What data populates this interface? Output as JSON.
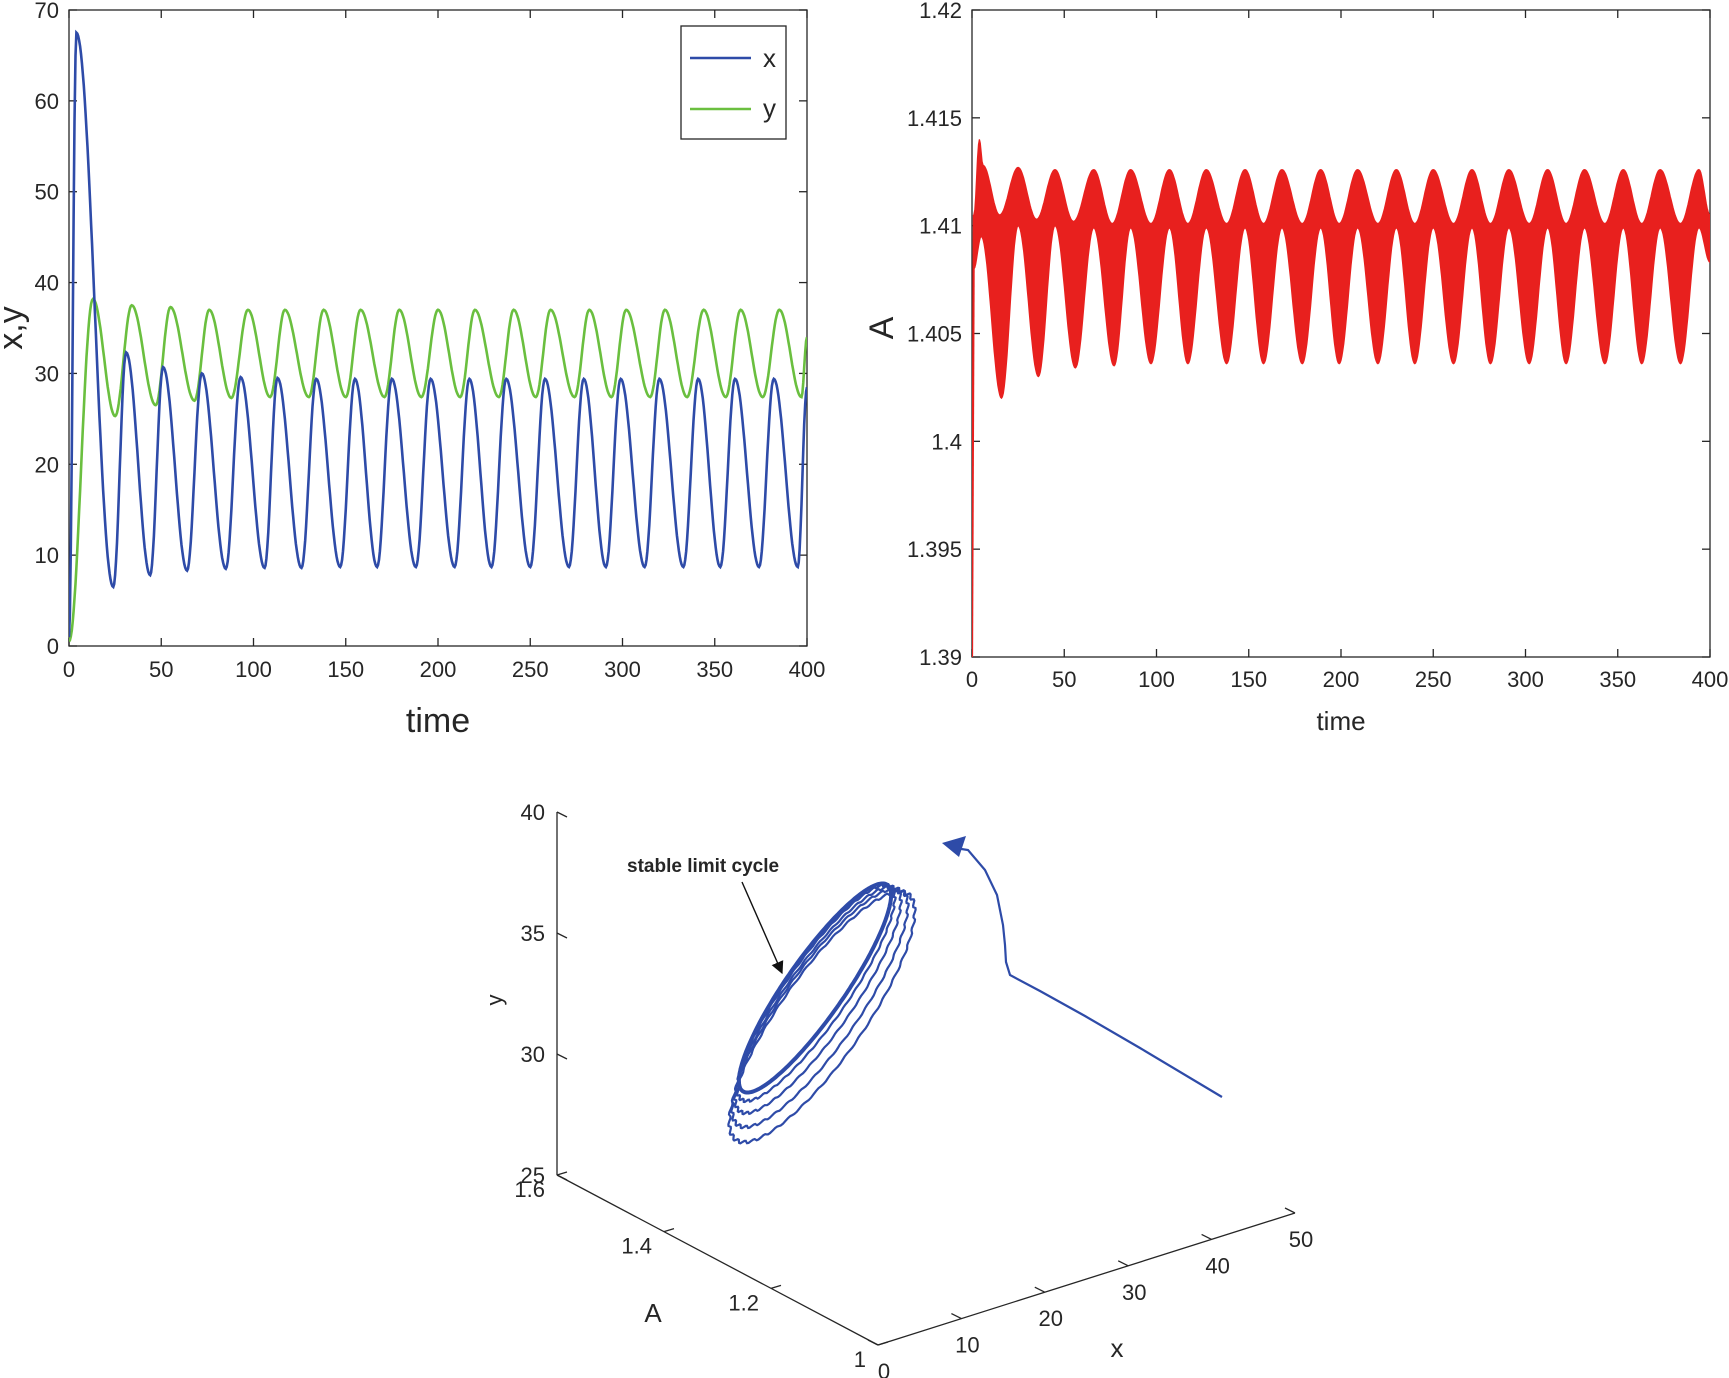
{
  "colors": {
    "x": "#2E4BA8",
    "y": "#6ABF3F",
    "A": "#E8201E",
    "axis": "#262626",
    "trajectory": "#2E4BA8"
  },
  "chart_data": [
    {
      "type": "line",
      "xlabel": "time",
      "ylabel": "x,y",
      "xlim": [
        0,
        400
      ],
      "ylim": [
        0,
        70
      ],
      "xticks": [
        "0",
        "50",
        "100",
        "150",
        "200",
        "250",
        "300",
        "350",
        "400"
      ],
      "yticks": [
        "0",
        "10",
        "20",
        "30",
        "40",
        "50",
        "60",
        "70"
      ],
      "legend_position": "top-right",
      "series": [
        {
          "name": "x",
          "color": "#2E4BA8",
          "extrema": [
            [
              0,
              1
            ],
            [
              4,
              67.5
            ],
            [
              24,
              6.5
            ],
            [
              31,
              32.3
            ],
            [
              44,
              7.8
            ],
            [
              51,
              30.7
            ],
            [
              64,
              8.3
            ],
            [
              72,
              30.0
            ],
            [
              85,
              8.5
            ],
            [
              93,
              29.6
            ],
            [
              106,
              8.6
            ],
            [
              113,
              29.5
            ],
            [
              126,
              8.6
            ],
            [
              134,
              29.4
            ],
            [
              147,
              8.7
            ],
            [
              155,
              29.4
            ],
            [
              167,
              8.7
            ],
            [
              175,
              29.4
            ],
            [
              188,
              8.7
            ],
            [
              196,
              29.4
            ],
            [
              209,
              8.7
            ],
            [
              217,
              29.4
            ],
            [
              229,
              8.7
            ],
            [
              237,
              29.4
            ],
            [
              250,
              8.7
            ],
            [
              258,
              29.4
            ],
            [
              271,
              8.7
            ],
            [
              279,
              29.4
            ],
            [
              291,
              8.7
            ],
            [
              299,
              29.4
            ],
            [
              312,
              8.7
            ],
            [
              320,
              29.4
            ],
            [
              333,
              8.7
            ],
            [
              341,
              29.4
            ],
            [
              353,
              8.7
            ],
            [
              361,
              29.4
            ],
            [
              374,
              8.7
            ],
            [
              382,
              29.4
            ],
            [
              395,
              8.7
            ],
            [
              400,
              28.5
            ]
          ]
        },
        {
          "name": "y",
          "color": "#6ABF3F",
          "extrema": [
            [
              0,
              0.5
            ],
            [
              13,
              38.2
            ],
            [
              25,
              25.3
            ],
            [
              34,
              37.5
            ],
            [
              47,
              26.5
            ],
            [
              55,
              37.3
            ],
            [
              68,
              27.0
            ],
            [
              76,
              37.0
            ],
            [
              88,
              27.3
            ],
            [
              97,
              37.0
            ],
            [
              109,
              27.4
            ],
            [
              117,
              37.0
            ],
            [
              130,
              27.4
            ],
            [
              138,
              37.0
            ],
            [
              150,
              27.4
            ],
            [
              158,
              37.0
            ],
            [
              171,
              27.4
            ],
            [
              179,
              37.0
            ],
            [
              191,
              27.4
            ],
            [
              200,
              37.0
            ],
            [
              212,
              27.4
            ],
            [
              220,
              37.0
            ],
            [
              233,
              27.4
            ],
            [
              241,
              37.0
            ],
            [
              253,
              27.4
            ],
            [
              261,
              37.0
            ],
            [
              274,
              27.4
            ],
            [
              282,
              37.0
            ],
            [
              294,
              27.4
            ],
            [
              302,
              37.0
            ],
            [
              315,
              27.4
            ],
            [
              323,
              37.0
            ],
            [
              335,
              27.4
            ],
            [
              344,
              37.0
            ],
            [
              356,
              27.4
            ],
            [
              364,
              37.0
            ],
            [
              376,
              27.4
            ],
            [
              385,
              37.0
            ],
            [
              397,
              27.4
            ],
            [
              400,
              34.0
            ]
          ]
        }
      ]
    },
    {
      "type": "line",
      "xlabel": "time",
      "ylabel": "A",
      "xlim": [
        0,
        400
      ],
      "ylim": [
        1.39,
        1.42
      ],
      "xticks": [
        "0",
        "50",
        "100",
        "150",
        "200",
        "250",
        "300",
        "350",
        "400"
      ],
      "yticks": [
        "1.39",
        "1.395",
        "1.4",
        "1.405",
        "1.41",
        "1.415",
        "1.42"
      ],
      "series": [
        {
          "name": "A",
          "color": "#E8201E",
          "envelope_upper": [
            [
              0,
              1.39
            ],
            [
              1,
              1.4105
            ],
            [
              4,
              1.414
            ],
            [
              6,
              1.4128
            ],
            [
              15,
              1.4105
            ],
            [
              25,
              1.4127
            ],
            [
              35,
              1.4103
            ],
            [
              45,
              1.4126
            ],
            [
              55,
              1.4102
            ],
            [
              66,
              1.4126
            ],
            [
              76,
              1.4101
            ],
            [
              86,
              1.4126
            ],
            [
              97,
              1.4101
            ],
            [
              107,
              1.4126
            ],
            [
              117,
              1.4101
            ],
            [
              127,
              1.4126
            ],
            [
              138,
              1.4101
            ],
            [
              148,
              1.4126
            ],
            [
              158,
              1.4101
            ],
            [
              168,
              1.4126
            ],
            [
              179,
              1.4101
            ],
            [
              189,
              1.4126
            ],
            [
              199,
              1.4101
            ],
            [
              209,
              1.4126
            ],
            [
              220,
              1.4101
            ],
            [
              230,
              1.4126
            ],
            [
              240,
              1.4101
            ],
            [
              250,
              1.4126
            ],
            [
              261,
              1.4101
            ],
            [
              271,
              1.4126
            ],
            [
              281,
              1.4101
            ],
            [
              291,
              1.4126
            ],
            [
              302,
              1.4101
            ],
            [
              312,
              1.4126
            ],
            [
              322,
              1.4101
            ],
            [
              332,
              1.4126
            ],
            [
              343,
              1.4101
            ],
            [
              353,
              1.4126
            ],
            [
              363,
              1.4101
            ],
            [
              373,
              1.4126
            ],
            [
              384,
              1.4101
            ],
            [
              394,
              1.4126
            ],
            [
              400,
              1.4105
            ]
          ],
          "envelope_lower": [
            [
              0,
              1.39
            ],
            [
              1,
              1.408
            ],
            [
              5,
              1.4095
            ],
            [
              16,
              1.402
            ],
            [
              25,
              1.41
            ],
            [
              36,
              1.403
            ],
            [
              45,
              1.41
            ],
            [
              56,
              1.4034
            ],
            [
              66,
              1.4099
            ],
            [
              77,
              1.4035
            ],
            [
              86,
              1.4099
            ],
            [
              97,
              1.4036
            ],
            [
              107,
              1.4099
            ],
            [
              117,
              1.4036
            ],
            [
              127,
              1.4099
            ],
            [
              138,
              1.4036
            ],
            [
              148,
              1.4099
            ],
            [
              158,
              1.4036
            ],
            [
              168,
              1.4099
            ],
            [
              179,
              1.4036
            ],
            [
              189,
              1.4099
            ],
            [
              199,
              1.4036
            ],
            [
              209,
              1.4099
            ],
            [
              220,
              1.4036
            ],
            [
              230,
              1.4099
            ],
            [
              240,
              1.4036
            ],
            [
              250,
              1.4099
            ],
            [
              261,
              1.4036
            ],
            [
              271,
              1.4099
            ],
            [
              281,
              1.4036
            ],
            [
              291,
              1.4099
            ],
            [
              302,
              1.4036
            ],
            [
              312,
              1.4099
            ],
            [
              322,
              1.4036
            ],
            [
              332,
              1.4099
            ],
            [
              343,
              1.4036
            ],
            [
              353,
              1.4099
            ],
            [
              363,
              1.4036
            ],
            [
              373,
              1.4099
            ],
            [
              384,
              1.4036
            ],
            [
              394,
              1.4099
            ],
            [
              400,
              1.4083
            ]
          ]
        }
      ]
    },
    {
      "type": "line",
      "xlabel": "x",
      "ylabel": "y",
      "zlabel": "A",
      "xticks": [
        "0",
        "10",
        "20",
        "30",
        "40",
        "50"
      ],
      "Aticks": [
        "1",
        "1.2",
        "1.4",
        "1.6"
      ],
      "yticks": [
        "25",
        "30",
        "35",
        "40"
      ],
      "xlim": [
        0,
        50
      ],
      "Alim": [
        1,
        1.6
      ],
      "ylim": [
        25,
        40
      ],
      "annotation": "stable limit cycle",
      "series": [
        {
          "name": "trajectory",
          "color": "#2E4BA8"
        }
      ]
    }
  ]
}
